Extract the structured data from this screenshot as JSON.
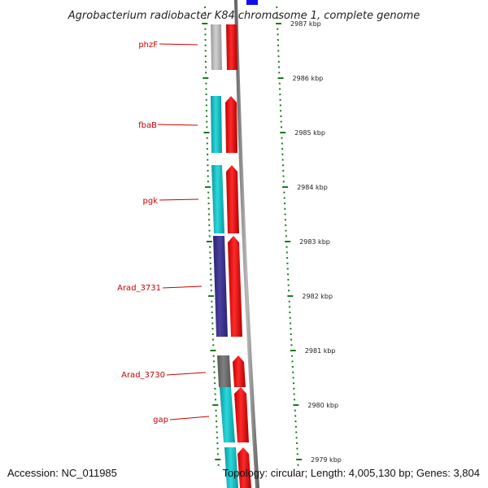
{
  "title": "Agrobacterium radiobacter K84 chromosome 1, complete genome",
  "footer": {
    "accession": "Accession: NC_011985",
    "summary": "Topology: circular; Length: 4,005,130 bp; Genes: 3,804"
  },
  "colors": {
    "label": "#cc0000",
    "tick": "#1a7a1a",
    "forward_gene": "#ff1010",
    "backbone": "#808080",
    "cyan": "#17c8cc",
    "purple": "#3f3590",
    "gray": "#bdbdbd",
    "dark_gray": "#707070",
    "blue": "#1010ee"
  },
  "kbp_markers": [
    {
      "label": "2987 kbp",
      "kbp": 2987
    },
    {
      "label": "2986 kbp",
      "kbp": 2986
    },
    {
      "label": "2985 kbp",
      "kbp": 2985
    },
    {
      "label": "2984 kbp",
      "kbp": 2984
    },
    {
      "label": "2983 kbp",
      "kbp": 2983
    },
    {
      "label": "2982 kbp",
      "kbp": 2982
    },
    {
      "label": "2981 kbp",
      "kbp": 2981
    },
    {
      "label": "2980 kbp",
      "kbp": 2980
    },
    {
      "label": "2979 kbp",
      "kbp": 2979
    }
  ],
  "gene_labels": [
    {
      "name": "phzF"
    },
    {
      "name": "fbaB"
    },
    {
      "name": "pgk"
    },
    {
      "name": "Arad_3731"
    },
    {
      "name": "Arad_3730"
    },
    {
      "name": "gap"
    }
  ]
}
